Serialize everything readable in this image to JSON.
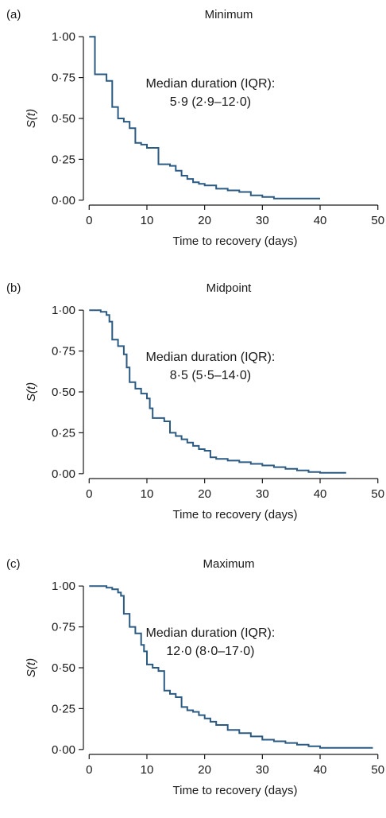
{
  "colors": {
    "curve": "#2b5a82",
    "axis": "#1a1a1a"
  },
  "chart_data": [
    {
      "type": "line",
      "step": true,
      "panel_label": "(a)",
      "title": "Minimum",
      "xlabel": "Time to recovery (days)",
      "ylabel": "S(t)",
      "xlim": [
        -1,
        51
      ],
      "ylim": [
        -0.03,
        1.03
      ],
      "xticks": [
        0,
        10,
        20,
        30,
        40,
        50
      ],
      "yticks": [
        0,
        0.25,
        0.5,
        0.75,
        1
      ],
      "ytick_labels": [
        "0·00",
        "0·25",
        "0·50",
        "0·75",
        "1·00"
      ],
      "annotation": [
        "Median duration (IQR):",
        "5·9 (2·9–12·0)"
      ],
      "series": [
        {
          "x": [
            0,
            1,
            3,
            4,
            5,
            6,
            7,
            8,
            9,
            10,
            12,
            14,
            15,
            16,
            17,
            18,
            19,
            20,
            22,
            24,
            26,
            28,
            30,
            32,
            34,
            40
          ],
          "y": [
            1.0,
            0.77,
            0.73,
            0.57,
            0.5,
            0.48,
            0.44,
            0.35,
            0.34,
            0.32,
            0.22,
            0.21,
            0.18,
            0.15,
            0.13,
            0.11,
            0.1,
            0.09,
            0.07,
            0.06,
            0.05,
            0.03,
            0.02,
            0.01,
            0.01,
            0.01
          ]
        }
      ]
    },
    {
      "type": "line",
      "step": true,
      "panel_label": "(b)",
      "title": "Midpoint",
      "xlabel": "Time to recovery (days)",
      "ylabel": "S(t)",
      "xlim": [
        -1,
        51
      ],
      "ylim": [
        -0.03,
        1.03
      ],
      "xticks": [
        0,
        10,
        20,
        30,
        40,
        50
      ],
      "yticks": [
        0,
        0.25,
        0.5,
        0.75,
        1
      ],
      "ytick_labels": [
        "0·00",
        "0·25",
        "0·50",
        "0·75",
        "1·00"
      ],
      "annotation": [
        "Median duration (IQR):",
        "8·5 (5·5–14·0)"
      ],
      "series": [
        {
          "x": [
            0,
            2,
            3,
            3.5,
            4,
            5,
            6,
            6.5,
            7,
            8,
            9,
            10,
            10.5,
            11,
            13,
            14,
            15,
            16,
            17,
            18,
            19,
            20,
            21,
            22,
            24,
            26,
            28,
            30,
            32,
            34,
            36,
            38,
            40,
            44.5
          ],
          "y": [
            1.0,
            0.99,
            0.97,
            0.93,
            0.82,
            0.78,
            0.73,
            0.65,
            0.56,
            0.52,
            0.49,
            0.46,
            0.4,
            0.34,
            0.32,
            0.25,
            0.23,
            0.21,
            0.19,
            0.17,
            0.15,
            0.14,
            0.1,
            0.09,
            0.08,
            0.07,
            0.06,
            0.05,
            0.04,
            0.03,
            0.02,
            0.01,
            0.005,
            0.005
          ]
        }
      ]
    },
    {
      "type": "line",
      "step": true,
      "panel_label": "(c)",
      "title": "Maximum",
      "xlabel": "Time to recovery (days)",
      "ylabel": "S(t)",
      "xlim": [
        -1,
        51
      ],
      "ylim": [
        -0.03,
        1.03
      ],
      "xticks": [
        0,
        10,
        20,
        30,
        40,
        50
      ],
      "yticks": [
        0,
        0.25,
        0.5,
        0.75,
        1
      ],
      "ytick_labels": [
        "0·00",
        "0·25",
        "0·50",
        "0·75",
        "1·00"
      ],
      "annotation": [
        "Median duration (IQR):",
        "12·0 (8·0–17·0)"
      ],
      "series": [
        {
          "x": [
            0,
            3,
            4,
            5,
            5.5,
            6,
            7,
            8,
            9,
            9.5,
            10,
            11,
            12,
            13,
            14,
            15,
            16,
            17,
            18,
            19,
            20,
            21,
            22,
            24,
            26,
            28,
            30,
            32,
            34,
            36,
            38,
            40,
            49
          ],
          "y": [
            1.0,
            0.99,
            0.98,
            0.96,
            0.94,
            0.83,
            0.75,
            0.71,
            0.64,
            0.6,
            0.52,
            0.5,
            0.48,
            0.36,
            0.34,
            0.32,
            0.26,
            0.24,
            0.23,
            0.21,
            0.19,
            0.17,
            0.15,
            0.12,
            0.1,
            0.08,
            0.06,
            0.05,
            0.04,
            0.03,
            0.02,
            0.01,
            0.005
          ]
        }
      ]
    }
  ]
}
